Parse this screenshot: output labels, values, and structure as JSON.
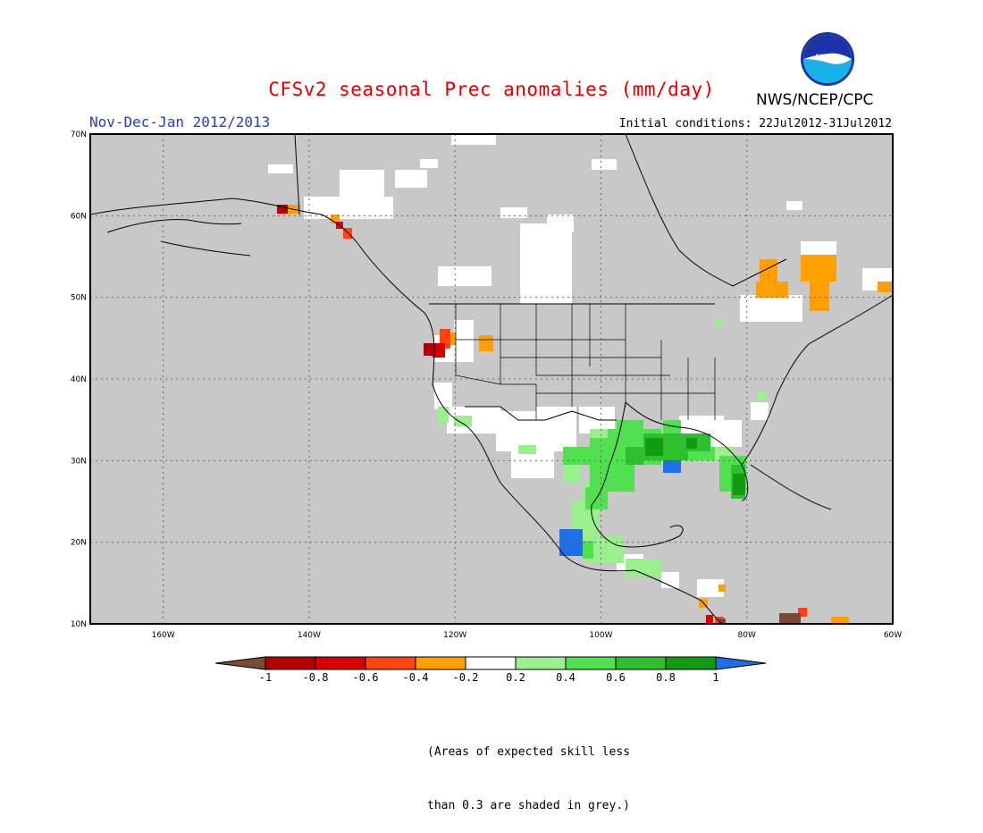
{
  "title": "CFSv2 seasonal Prec anomalies (mm/day)",
  "agency": "NWS/NCEP/CPC",
  "logo_text": "NOAA",
  "season": "Nov-Dec-Jan 2012/2013",
  "initial_conditions": "Initial conditions: 22Jul2012-31Jul2012",
  "lat_labels": [
    "70N",
    "60N",
    "50N",
    "40N",
    "30N",
    "20N",
    "10N"
  ],
  "lon_labels": [
    "160W",
    "140W",
    "120W",
    "100W",
    "80W",
    "60W"
  ],
  "legend": {
    "tick_labels": [
      "-1",
      "-0.8",
      "-0.6",
      "-0.4",
      "-0.2",
      "0.2",
      "0.4",
      "0.6",
      "0.8",
      "1"
    ],
    "colors": [
      "#7a4a33",
      "#b40000",
      "#d80000",
      "#ff4412",
      "#ffa000",
      "#ffffff",
      "#9af08c",
      "#50e050",
      "#2ec02e",
      "#129a12",
      "#1e6ee6"
    ]
  },
  "note_lines": [
    "(Areas of expected skill less",
    "than 0.3 are shaded in grey.)"
  ],
  "colors": {
    "grey_mask": "#c8c8c8",
    "title_red": "#e00000",
    "season_blue": "#2240c8"
  },
  "map_extent": {
    "lon_min": -170,
    "lon_max": -60,
    "lat_min": 10,
    "lat_max": 70
  }
}
